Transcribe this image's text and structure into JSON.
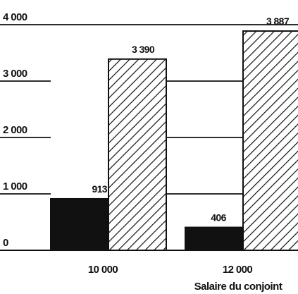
{
  "chart_data": {
    "type": "bar",
    "title": "",
    "xlabel": "Salaire du conjoint",
    "ylabel": "",
    "categories": [
      "10 000",
      "12 000"
    ],
    "ylim": [
      0,
      4000
    ],
    "yticks": [
      0,
      1000,
      2000,
      3000,
      4000
    ],
    "ytick_labels": [
      "0",
      "1 000",
      "2 000",
      "3 000",
      "4 000"
    ],
    "grid": true,
    "series": [
      {
        "values": [
          913,
          406
        ],
        "value_labels": [
          "913",
          "406"
        ],
        "fill": "solid",
        "color": "#111111"
      },
      {
        "values": [
          3390,
          3887
        ],
        "value_labels": [
          "3 390",
          "3 887"
        ],
        "fill": "hatched",
        "color": "#111111"
      }
    ]
  }
}
